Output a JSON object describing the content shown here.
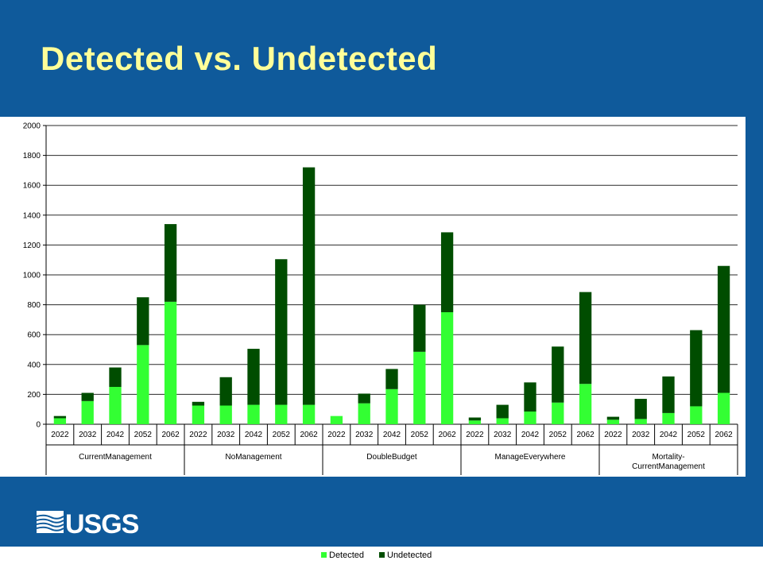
{
  "title": "Detected vs. Undetected",
  "logo": {
    "text": "USGS",
    "icon": "usgs-wave-icon"
  },
  "colors": {
    "background": "#0f5a9b",
    "title": "#ffff99",
    "detected": "#33ff33",
    "undetected": "#004d00",
    "grid": "#2a2a2a"
  },
  "chart_data": {
    "type": "bar",
    "stacked": true,
    "title": "",
    "xlabel": "",
    "ylabel": "",
    "ylim": [
      0,
      2000
    ],
    "yticks": [
      0,
      200,
      400,
      600,
      800,
      1000,
      1200,
      1400,
      1600,
      1800,
      2000
    ],
    "grid": true,
    "legend_position": "bottom",
    "groups": [
      {
        "name": "CurrentManagement",
        "label_lines": [
          "CurrentManagement"
        ]
      },
      {
        "name": "NoManagement",
        "label_lines": [
          "NoManagement"
        ]
      },
      {
        "name": "DoubleBudget",
        "label_lines": [
          "DoubleBudget"
        ]
      },
      {
        "name": "ManageEverywhere",
        "label_lines": [
          "ManageEverywhere"
        ]
      },
      {
        "name": "Mortality-CurrentManagement",
        "label_lines": [
          "Mortality-",
          "CurrentManagement"
        ]
      }
    ],
    "categories": [
      "2022",
      "2032",
      "2042",
      "2052",
      "2062",
      "2022",
      "2032",
      "2042",
      "2052",
      "2062",
      "2022",
      "2032",
      "2042",
      "2052",
      "2062",
      "2022",
      "2032",
      "2042",
      "2052",
      "2062",
      "2022",
      "2032",
      "2042",
      "2052",
      "2062"
    ],
    "series": [
      {
        "name": "Detected",
        "values": [
          40,
          155,
          250,
          530,
          820,
          125,
          125,
          130,
          130,
          130,
          55,
          140,
          235,
          485,
          750,
          25,
          40,
          85,
          145,
          270,
          30,
          35,
          75,
          120,
          210
        ]
      },
      {
        "name": "Undetected",
        "values": [
          15,
          55,
          130,
          320,
          520,
          25,
          190,
          375,
          975,
          1590,
          0,
          65,
          135,
          315,
          535,
          20,
          90,
          195,
          375,
          615,
          20,
          135,
          245,
          510,
          850
        ]
      }
    ]
  }
}
